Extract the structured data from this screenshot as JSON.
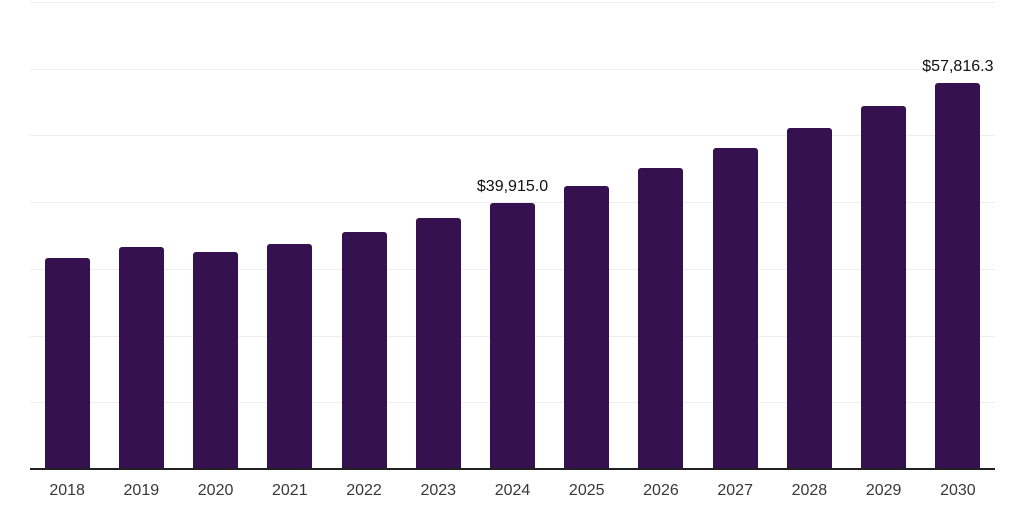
{
  "chart_data": {
    "type": "bar",
    "title": "",
    "xlabel": "",
    "ylabel": "",
    "categories": [
      "2018",
      "2019",
      "2020",
      "2021",
      "2022",
      "2023",
      "2024",
      "2025",
      "2026",
      "2027",
      "2028",
      "2029",
      "2030"
    ],
    "values": [
      31630,
      33280,
      32530,
      33730,
      35530,
      37630,
      39915.0,
      42458,
      45163,
      48041,
      51102,
      54358,
      57816.3
    ],
    "data_labels": [
      {
        "index": 6,
        "text": "$39,915.0"
      },
      {
        "index": 12,
        "text": "$57,816.3"
      }
    ],
    "ylim": [
      0,
      70000
    ],
    "grid_step": 10000,
    "grid": "horizontal-only",
    "legend_position": "none",
    "y_axis_tick_labels_visible": false,
    "colors": {
      "bar": "#36114F",
      "axis_line": "#222222",
      "gridline": "#ededed",
      "value_label": "#111111",
      "tick_label": "#383838",
      "background": "#ffffff"
    }
  }
}
